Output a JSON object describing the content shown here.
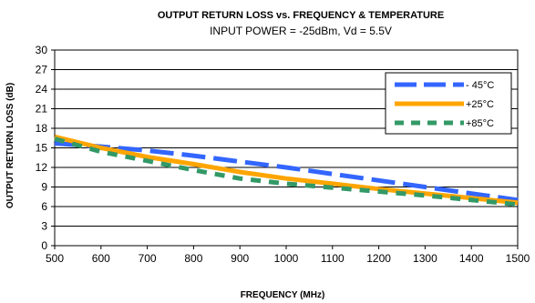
{
  "chart_data": {
    "type": "line",
    "title": "OUTPUT RETURN LOSS  vs. FREQUENCY & TEMPERATURE",
    "subtitle": "INPUT POWER = -25dBm, Vd = 5.5V",
    "xlabel": "FREQUENCY (MHz)",
    "ylabel": "OUTPUT RETURN LOSS (dB)",
    "xlim": [
      500,
      1500
    ],
    "ylim": [
      0,
      30
    ],
    "xticks": [
      500,
      600,
      700,
      800,
      900,
      1000,
      1100,
      1200,
      1300,
      1400,
      1500
    ],
    "yticks": [
      0,
      3,
      6,
      9,
      12,
      15,
      18,
      21,
      24,
      27,
      30
    ],
    "grid": "horizontal",
    "legend_position": "top-right",
    "series": [
      {
        "name": "- 45°C",
        "color": "#3366FF",
        "style": "dashed",
        "x": [
          500,
          600,
          700,
          800,
          900,
          1000,
          1100,
          1200,
          1300,
          1400,
          1500
        ],
        "y": [
          15.7,
          15.2,
          14.6,
          13.8,
          12.9,
          12.0,
          11.0,
          10.0,
          9.0,
          8.0,
          7.0
        ]
      },
      {
        "name": "+25°C",
        "color": "#FFA500",
        "style": "solid",
        "x": [
          500,
          600,
          700,
          800,
          900,
          1000,
          1100,
          1200,
          1300,
          1400,
          1500
        ],
        "y": [
          16.7,
          15.0,
          13.6,
          12.5,
          11.3,
          10.3,
          9.5,
          8.7,
          8.0,
          7.3,
          6.6
        ]
      },
      {
        "name": "+85°C",
        "color": "#339966",
        "style": "dashed",
        "x": [
          500,
          600,
          700,
          800,
          900,
          1000,
          1100,
          1200,
          1300,
          1400,
          1500
        ],
        "y": [
          16.4,
          14.4,
          13.0,
          11.6,
          10.3,
          9.5,
          8.9,
          8.3,
          7.7,
          7.0,
          6.3
        ]
      }
    ]
  }
}
